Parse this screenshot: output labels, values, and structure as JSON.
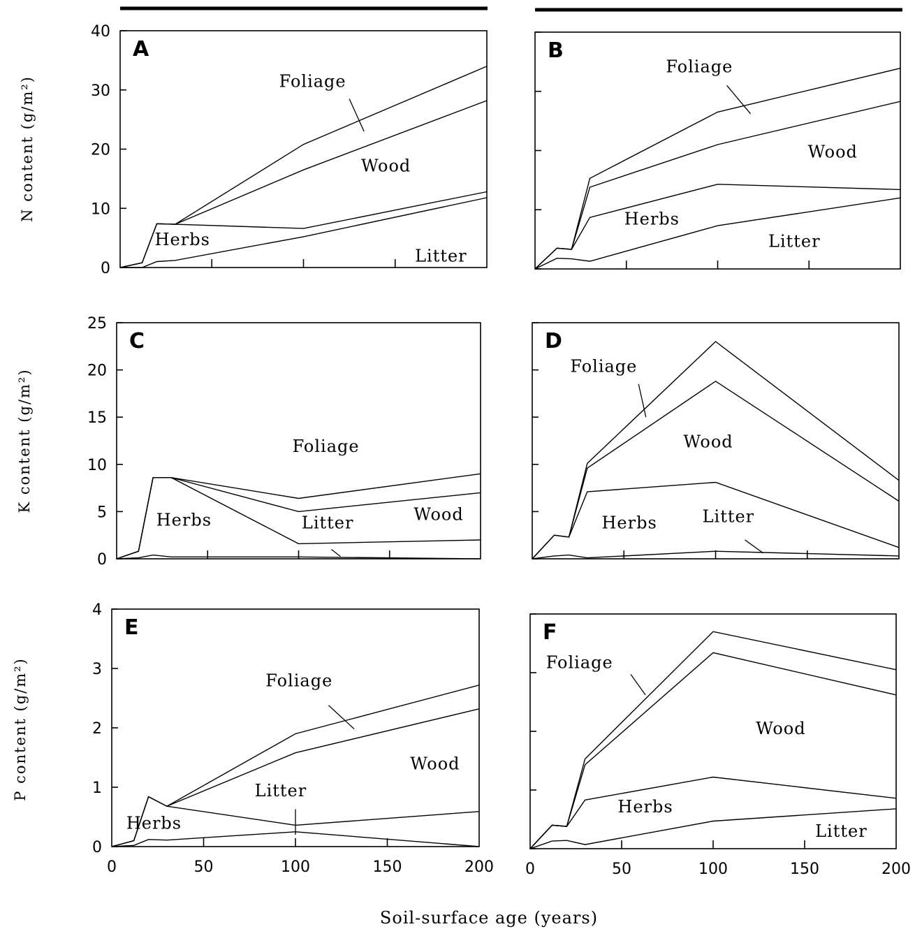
{
  "chart_data": {
    "type": "area",
    "xlabel": "Soil-surface age (years)",
    "xlim": [
      0,
      200
    ],
    "xticks": [
      0,
      50,
      100,
      150,
      200
    ],
    "panels": [
      {
        "letter": "A",
        "ylabel": "N content (g/m²)",
        "ylim": [
          0,
          40
        ],
        "yticks": [
          0,
          10,
          20,
          30,
          40
        ],
        "layers": [
          "Litter",
          "Herbs",
          "Wood",
          "Foliage"
        ],
        "x": [
          0,
          12,
          20,
          30,
          100,
          200
        ],
        "cumulative": [
          [
            0,
            0,
            1,
            1.2,
            5.2,
            11.8
          ],
          [
            0,
            0.8,
            7.4,
            7.3,
            6.6,
            12.8
          ],
          [
            0,
            0.8,
            7.4,
            7.3,
            16.5,
            28.2
          ],
          [
            0,
            0.8,
            7.4,
            7.3,
            20.8,
            34.0
          ]
        ]
      },
      {
        "letter": "B",
        "ylabel": "",
        "ylim": [
          0,
          40
        ],
        "yticks": [
          0,
          10,
          20,
          30,
          40
        ],
        "layers": [
          "Litter",
          "Herbs",
          "Wood",
          "Foliage"
        ],
        "x": [
          0,
          12,
          20,
          30,
          100,
          200
        ],
        "cumulative": [
          [
            0,
            1.8,
            1.7,
            1.3,
            7.3,
            12.0
          ],
          [
            0,
            3.5,
            3.3,
            8.7,
            14.3,
            13.4
          ],
          [
            0,
            3.5,
            3.3,
            13.8,
            21.0,
            28.3
          ],
          [
            0,
            3.5,
            3.3,
            15.3,
            26.5,
            33.9
          ]
        ]
      },
      {
        "letter": "C",
        "ylabel": "K content (g/m²)",
        "ylim": [
          0,
          25
        ],
        "yticks": [
          0,
          5,
          10,
          15,
          20,
          25
        ],
        "layers": [
          "Litter",
          "Herbs",
          "Wood",
          "Foliage"
        ],
        "x": [
          0,
          12,
          20,
          30,
          100,
          200
        ],
        "cumulative": [
          [
            0,
            0.1,
            0.4,
            0.2,
            0.2,
            0.0
          ],
          [
            0,
            0.8,
            8.6,
            8.6,
            1.6,
            2.0
          ],
          [
            0,
            0.8,
            8.6,
            8.6,
            5.0,
            7.0
          ],
          [
            0,
            0.8,
            8.6,
            8.6,
            6.4,
            9.0
          ]
        ]
      },
      {
        "letter": "D",
        "ylabel": "",
        "ylim": [
          0,
          25
        ],
        "yticks": [
          0,
          5,
          10,
          15,
          20,
          25
        ],
        "layers": [
          "Litter",
          "Herbs",
          "Wood",
          "Foliage"
        ],
        "x": [
          0,
          12,
          20,
          30,
          100,
          200
        ],
        "cumulative": [
          [
            0,
            0.3,
            0.4,
            0.1,
            0.8,
            0.3
          ],
          [
            0,
            2.5,
            2.3,
            7.1,
            8.1,
            1.2
          ],
          [
            0,
            2.5,
            2.3,
            9.6,
            18.8,
            6.1
          ],
          [
            0,
            2.5,
            2.3,
            10.1,
            23.0,
            8.3
          ]
        ]
      },
      {
        "letter": "E",
        "ylabel": "P content (g/m²)",
        "ylim": [
          0,
          4
        ],
        "yticks": [
          0,
          1,
          2,
          3,
          4
        ],
        "layers": [
          "Litter",
          "Herbs",
          "Wood",
          "Foliage"
        ],
        "x": [
          0,
          12,
          20,
          30,
          100,
          200
        ],
        "cumulative": [
          [
            0,
            0.02,
            0.12,
            0.11,
            0.25,
            0.0
          ],
          [
            0,
            0.1,
            0.84,
            0.68,
            0.36,
            0.59
          ],
          [
            0,
            0.1,
            0.84,
            0.68,
            1.58,
            2.32
          ],
          [
            0,
            0.1,
            0.84,
            0.68,
            1.9,
            2.72
          ]
        ]
      },
      {
        "letter": "F",
        "ylabel": "",
        "ylim": [
          0,
          4
        ],
        "yticks": [
          0,
          1,
          2,
          3,
          4
        ],
        "layers": [
          "Litter",
          "Herbs",
          "Wood",
          "Foliage"
        ],
        "x": [
          0,
          12,
          20,
          30,
          100,
          200
        ],
        "cumulative": [
          [
            0,
            0.13,
            0.14,
            0.07,
            0.47,
            0.68
          ],
          [
            0,
            0.4,
            0.38,
            0.83,
            1.22,
            0.86
          ],
          [
            0,
            0.4,
            0.38,
            1.43,
            3.34,
            2.62
          ],
          [
            0,
            0.4,
            0.38,
            1.53,
            3.7,
            3.05
          ]
        ]
      }
    ],
    "annotations": [
      {
        "panel": "A",
        "label": "Foliage",
        "x": 105,
        "y": 30.5,
        "leader": [
          [
            125,
            28.5
          ],
          [
            133,
            23.0
          ]
        ]
      },
      {
        "panel": "A",
        "label": "Wood",
        "x": 145,
        "y": 16.2
      },
      {
        "panel": "A",
        "label": "Herbs",
        "x": 34,
        "y": 3.8
      },
      {
        "panel": "A",
        "label": "Litter",
        "x": 175,
        "y": 1.0
      },
      {
        "panel": "B",
        "label": "Foliage",
        "x": 90,
        "y": 33.2,
        "leader": [
          [
            105,
            31.0
          ],
          [
            118,
            26.2
          ]
        ]
      },
      {
        "panel": "B",
        "label": "Wood",
        "x": 163,
        "y": 18.8
      },
      {
        "panel": "B",
        "label": "Herbs",
        "x": 64,
        "y": 7.5
      },
      {
        "panel": "B",
        "label": "Litter",
        "x": 142,
        "y": 3.7
      },
      {
        "panel": "C",
        "label": "Foliage",
        "x": 115,
        "y": 11.3
      },
      {
        "panel": "C",
        "label": "Wood",
        "x": 177,
        "y": 4.1
      },
      {
        "panel": "C",
        "label": "Herbs",
        "x": 37,
        "y": 3.5
      },
      {
        "panel": "C",
        "label": "Litter",
        "x": 116,
        "y": 3.2,
        "leader": [
          [
            118,
            1.0
          ],
          [
            123,
            0.25
          ]
        ]
      },
      {
        "panel": "D",
        "label": "Foliage",
        "x": 39,
        "y": 19.8,
        "leader": [
          [
            58,
            18.5
          ],
          [
            62,
            15.0
          ]
        ]
      },
      {
        "panel": "D",
        "label": "Wood",
        "x": 96,
        "y": 11.8
      },
      {
        "panel": "D",
        "label": "Herbs",
        "x": 53,
        "y": 3.2
      },
      {
        "panel": "D",
        "label": "Litter",
        "x": 107,
        "y": 3.9,
        "leader": [
          [
            116,
            2.0
          ],
          [
            126,
            0.6
          ]
        ]
      },
      {
        "panel": "E",
        "label": "Foliage",
        "x": 102,
        "y": 2.7,
        "leader": [
          [
            118,
            2.38
          ],
          [
            132,
            1.98
          ]
        ]
      },
      {
        "panel": "E",
        "label": "Wood",
        "x": 176,
        "y": 1.3
      },
      {
        "panel": "E",
        "label": "Herbs",
        "x": 23,
        "y": 0.3
      },
      {
        "panel": "E",
        "label": "Litter",
        "x": 92,
        "y": 0.85,
        "leader": [
          [
            100,
            0.63
          ],
          [
            100,
            0.2
          ]
        ]
      },
      {
        "panel": "F",
        "label": "Foliage",
        "x": 27,
        "y": 3.08,
        "leader": [
          [
            55,
            2.97
          ],
          [
            63,
            2.62
          ]
        ]
      },
      {
        "panel": "F",
        "label": "Wood",
        "x": 137,
        "y": 1.95
      },
      {
        "panel": "F",
        "label": "Herbs",
        "x": 63,
        "y": 0.62
      },
      {
        "panel": "F",
        "label": "Litter",
        "x": 170,
        "y": 0.2
      }
    ]
  }
}
